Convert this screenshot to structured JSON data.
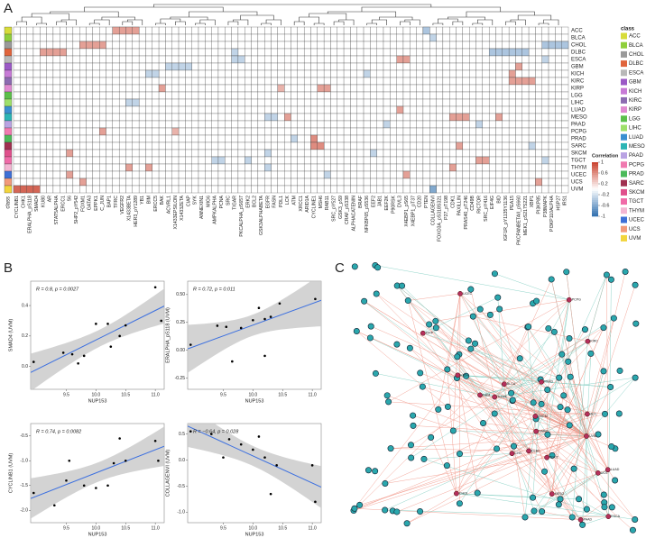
{
  "panels": {
    "a": "A",
    "b": "B",
    "c": "C"
  },
  "chart_data": [
    {
      "type": "heatmap",
      "row_axis_label": "class",
      "rows": [
        "ACC",
        "BLCA",
        "CHOL",
        "DLBC",
        "ESCA",
        "GBM",
        "KICH",
        "KIRC",
        "KIRP",
        "LGG",
        "LIHC",
        "LUAD",
        "MESO",
        "PAAD",
        "PCPG",
        "PRAD",
        "SARC",
        "SKCM",
        "TGCT",
        "THYM",
        "UCEC",
        "UCS",
        "UVM"
      ],
      "class_colors": [
        "#d7dc3a",
        "#8fcf3c",
        "#9a9a9a",
        "#e0643c",
        "#b8b8b8",
        "#9b59c6",
        "#c77ad6",
        "#8c6bb1",
        "#e08ad0",
        "#5cbf4a",
        "#9ee06a",
        "#3a8fd0",
        "#2cb5b5",
        "#b9a3e3",
        "#f07ab0",
        "#4cba5a",
        "#a03050",
        "#e0508c",
        "#f06aa8",
        "#f3b6d3",
        "#3d6fd6",
        "#f29a7a",
        "#f2d53c"
      ],
      "columns": [
        "CYCLINB1",
        "CHK1",
        "ERALPHA_pS118",
        "SMAD4",
        "KU80",
        "AR",
        "STAT5ALPHA",
        "ERCC1",
        "S6",
        "SHP2_pY542",
        "FOXM1",
        "GATA3",
        "EPPK1",
        "C_JUN",
        "BAP1",
        "TFRC",
        "VEGFR2",
        "X1433BETA",
        "HER3_pY1289",
        "YB1",
        "BIM",
        "ERCC5",
        "BAK",
        "ACVRL1",
        "X1433EPSILON",
        "X1433ZETA",
        "CIAP",
        "SYK",
        "ANNEXIN1",
        "MIG6",
        "AMPKALPHA",
        "PCNA",
        "SRC",
        "TIGAR",
        "PKCALPHA_pS657",
        "ERK2",
        "BCL2",
        "GSK3ALPHABETA",
        "EGFR",
        "FASN",
        "PDL1",
        "LCK",
        "ATM",
        "XRCC1",
        "ARID1A",
        "CYCLINE1",
        "MSH6",
        "RAB11",
        "SRC_pY527",
        "GSK3_pS9",
        "CRAF_pS338",
        "ALPHACATENIN",
        "BRAF",
        "NFKBP65_pS536",
        "EEF2",
        "JAB1",
        "EEF2K",
        "P90RSK",
        "DVL3",
        "X4EBP1_pS65",
        "X4EBP1_pT37",
        "CD20",
        "PTEN",
        "COLLAGENVI",
        "FOXO3A_pS318S321",
        "P27_pT198",
        "CDK1",
        "PAXILLIN",
        "PRAS40_pT246",
        "CD49B",
        "RICTOR",
        "SRC_pY416",
        "EIF4G",
        "BID",
        "IGF1R_pY1135Y1136",
        "PEA15",
        "PKCPANBETAII_pS660",
        "MEK1_pS217S221",
        "XBP1",
        "PI3KP85",
        "P38MAPK",
        "PI3KP110ALPHA",
        "HSP27",
        "IRS1"
      ],
      "cells": [
        [
          {
            "col": 15,
            "value": 0.5
          },
          {
            "col": 16,
            "value": 0.5
          },
          {
            "col": 17,
            "value": 0.5
          },
          {
            "col": 18,
            "value": 0.5
          },
          {
            "col": 62,
            "value": -0.4
          }
        ],
        [
          {
            "col": 63,
            "value": -0.3
          }
        ],
        [
          {
            "col": 10,
            "value": 0.5
          },
          {
            "col": 11,
            "value": 0.5
          },
          {
            "col": 12,
            "value": 0.5
          },
          {
            "col": 13,
            "value": 0.5
          },
          {
            "col": 80,
            "value": -0.4
          },
          {
            "col": 81,
            "value": -0.4
          },
          {
            "col": 82,
            "value": -0.4
          },
          {
            "col": 83,
            "value": -0.4
          }
        ],
        [
          {
            "col": 4,
            "value": 0.5
          },
          {
            "col": 5,
            "value": 0.5
          },
          {
            "col": 6,
            "value": 0.5
          },
          {
            "col": 7,
            "value": 0.5
          },
          {
            "col": 33,
            "value": -0.3
          },
          {
            "col": 72,
            "value": -0.4
          },
          {
            "col": 73,
            "value": -0.4
          },
          {
            "col": 74,
            "value": -0.4
          },
          {
            "col": 75,
            "value": -0.4
          },
          {
            "col": 76,
            "value": -0.4
          },
          {
            "col": 77,
            "value": -0.4
          }
        ],
        [
          {
            "col": 33,
            "value": -0.3
          },
          {
            "col": 34,
            "value": -0.3
          },
          {
            "col": 58,
            "value": 0.5
          },
          {
            "col": 59,
            "value": 0.5
          },
          {
            "col": 80,
            "value": -0.3
          }
        ],
        [
          {
            "col": 23,
            "value": -0.3
          },
          {
            "col": 24,
            "value": -0.3
          },
          {
            "col": 25,
            "value": -0.3
          },
          {
            "col": 26,
            "value": -0.3
          },
          {
            "col": 76,
            "value": 0.5
          }
        ],
        [
          {
            "col": 20,
            "value": -0.3
          },
          {
            "col": 21,
            "value": -0.3
          },
          {
            "col": 53,
            "value": -0.3
          },
          {
            "col": 75,
            "value": 0.5
          }
        ],
        [
          {
            "col": 75,
            "value": 0.5
          },
          {
            "col": 76,
            "value": 0.5
          },
          {
            "col": 77,
            "value": 0.5
          },
          {
            "col": 78,
            "value": 0.5
          }
        ],
        [
          {
            "col": 22,
            "value": 0.5
          },
          {
            "col": 40,
            "value": 0.4
          },
          {
            "col": 46,
            "value": 0.5
          },
          {
            "col": 47,
            "value": 0.5
          }
        ],
        [],
        [
          {
            "col": 17,
            "value": -0.3
          },
          {
            "col": 18,
            "value": -0.3
          }
        ],
        [
          {
            "col": 58,
            "value": 0.5
          }
        ],
        [
          {
            "col": 38,
            "value": -0.3
          },
          {
            "col": 39,
            "value": -0.3
          },
          {
            "col": 41,
            "value": 0.5
          },
          {
            "col": 66,
            "value": 0.5
          },
          {
            "col": 67,
            "value": 0.5
          },
          {
            "col": 68,
            "value": 0.5
          },
          {
            "col": 73,
            "value": 0.5
          }
        ],
        [
          {
            "col": 56,
            "value": -0.3
          },
          {
            "col": 70,
            "value": -0.3
          }
        ],
        [
          {
            "col": 13,
            "value": 0.5
          },
          {
            "col": 24,
            "value": 0.4
          }
        ],
        [
          {
            "col": 42,
            "value": -0.3
          },
          {
            "col": 45,
            "value": 0.6
          }
        ],
        [
          {
            "col": 45,
            "value": 0.6
          },
          {
            "col": 46,
            "value": 0.6
          },
          {
            "col": 67,
            "value": 0.5
          },
          {
            "col": 78,
            "value": -0.3
          }
        ],
        [
          {
            "col": 8,
            "value": 0.5
          },
          {
            "col": 38,
            "value": -0.3
          },
          {
            "col": 54,
            "value": -0.3
          }
        ],
        [
          {
            "col": 30,
            "value": -0.3
          },
          {
            "col": 31,
            "value": -0.3
          },
          {
            "col": 35,
            "value": -0.3
          },
          {
            "col": 70,
            "value": 0.5
          },
          {
            "col": 71,
            "value": 0.5
          },
          {
            "col": 80,
            "value": -0.3
          }
        ],
        [
          {
            "col": 17,
            "value": 0.5
          },
          {
            "col": 20,
            "value": 0.5
          },
          {
            "col": 38,
            "value": -0.3
          },
          {
            "col": 66,
            "value": 0.5
          }
        ],
        [
          {
            "col": 8,
            "value": 0.5
          },
          {
            "col": 47,
            "value": -0.3
          },
          {
            "col": 59,
            "value": 0.5
          }
        ],
        [
          {
            "col": 10,
            "value": 0.5
          },
          {
            "col": 79,
            "value": 0.5
          }
        ],
        [
          {
            "col": 0,
            "value": 0.8
          },
          {
            "col": 1,
            "value": 0.8
          },
          {
            "col": 2,
            "value": 0.8
          },
          {
            "col": 3,
            "value": 0.8
          },
          {
            "col": 63,
            "value": -0.6
          }
        ]
      ],
      "legend_class_title": "class",
      "legend_title": "Correlation",
      "legend_ticks": [
        1,
        0.6,
        0.2,
        -0.2,
        -0.6,
        -1
      ],
      "clim": [
        -1,
        1
      ],
      "pos_color": "#c9402c",
      "neg_color": "#2f6fae"
    },
    {
      "type": "scatter",
      "annotation": "R = 0.8, p = 0.0027",
      "xlabel": "NUP153",
      "ylabel": "SMAD4 (UVM)",
      "x": [
        8.95,
        9.45,
        9.6,
        9.7,
        9.8,
        10.0,
        10.2,
        10.25,
        10.4,
        10.5,
        11.0,
        11.1
      ],
      "values": [
        0.03,
        0.09,
        0.08,
        0.02,
        0.07,
        0.28,
        0.28,
        0.13,
        0.2,
        0.27,
        0.52,
        0.3
      ],
      "xlim": [
        8.9,
        11.15
      ],
      "ylim": [
        -0.15,
        0.56
      ],
      "xticks": [
        9.5,
        {
          "value": 10,
          "label": "10.0"
        },
        10.5,
        {
          "value": 11,
          "label": "11.0"
        }
      ],
      "yticks": [
        0.4,
        0.2,
        {
          "value": 0,
          "label": "0.0"
        }
      ],
      "color": "#000000",
      "fit_color": "#3b6fe0",
      "band_color": "#c8c8c8"
    },
    {
      "type": "scatter",
      "annotation": "R = 0.72, p = 0.011",
      "xlabel": "NUP153",
      "ylabel": "ERALPHA_pS118 (UVM)",
      "x": [
        8.95,
        9.4,
        9.55,
        9.65,
        9.8,
        10.0,
        10.1,
        10.2,
        10.2,
        10.3,
        10.45,
        11.05
      ],
      "values": [
        0.05,
        0.22,
        0.21,
        -0.1,
        0.2,
        0.27,
        0.38,
        -0.05,
        0.28,
        0.3,
        0.42,
        0.46
      ],
      "xlim": [
        8.9,
        11.15
      ],
      "ylim": [
        -0.35,
        0.62
      ],
      "xticks": [
        9.5,
        {
          "value": 10,
          "label": "10.0"
        },
        10.5,
        {
          "value": 11,
          "label": "11.0"
        }
      ],
      "yticks": [
        {
          "value": 0.5,
          "label": "0.50"
        },
        0.25,
        {
          "value": 0,
          "label": "0.00"
        },
        -0.25
      ],
      "color": "#000000",
      "fit_color": "#3b6fe0",
      "band_color": "#c8c8c8"
    },
    {
      "type": "scatter",
      "annotation": "R = 0.74, p = 0.0082",
      "xlabel": "NUP153",
      "ylabel": "CYCLINB1 (UVM)",
      "x": [
        8.95,
        9.3,
        9.5,
        9.55,
        9.8,
        10.0,
        10.2,
        10.3,
        10.4,
        10.5,
        11.0,
        11.05
      ],
      "values": [
        -1.65,
        -1.9,
        -1.4,
        -1.0,
        -1.5,
        -1.55,
        -1.5,
        -1.05,
        -0.55,
        -1.0,
        -0.6,
        -1.0
      ],
      "xlim": [
        8.9,
        11.15
      ],
      "ylim": [
        -2.25,
        -0.25
      ],
      "xticks": [
        9.5,
        {
          "value": 10,
          "label": "10.0"
        },
        10.5,
        {
          "value": 11,
          "label": "11.0"
        }
      ],
      "yticks": [
        -0.5,
        {
          "value": -1,
          "label": "-1.0"
        },
        -1.5,
        {
          "value": -2,
          "label": "-2.0"
        }
      ],
      "color": "#000000",
      "fit_color": "#3b6fe0",
      "band_color": "#c8c8c8"
    },
    {
      "type": "scatter",
      "annotation": "R = −0.64, p = 0.028",
      "xlabel": "NUP153",
      "ylabel": "COLLAGENVI (UVM)",
      "x": [
        8.95,
        9.3,
        9.5,
        9.6,
        9.8,
        10.0,
        10.1,
        10.2,
        10.3,
        10.4,
        11.0,
        11.05
      ],
      "values": [
        0.55,
        0.5,
        0.05,
        0.4,
        0.3,
        0.2,
        0.45,
        0.05,
        -0.65,
        -0.1,
        -0.1,
        -0.8
      ],
      "xlim": [
        8.9,
        11.15
      ],
      "ylim": [
        -1.2,
        0.7
      ],
      "xticks": [
        9.5,
        {
          "value": 10,
          "label": "10.0"
        },
        10.5,
        {
          "value": 11,
          "label": "11.0"
        }
      ],
      "yticks": [
        0.5,
        {
          "value": 0,
          "label": "0.0"
        },
        -0.5,
        {
          "value": -1,
          "label": "-1.0"
        }
      ],
      "color": "#000000",
      "fit_color": "#3b6fe0",
      "band_color": "#c8c8c8"
    },
    {
      "type": "network",
      "hubs": [
        "UVM",
        "SKCM",
        "KICH",
        "THYM",
        "LIHC",
        "SARC",
        "MESO",
        "PAAD",
        "GBM",
        "ESCA",
        "UCEC",
        "CHOL",
        "TGCT",
        "LUAD",
        "KIRP",
        "PCPG",
        "UCS",
        "DLBC",
        "BLCA",
        "ACC",
        "KIRC",
        "PRAD"
      ],
      "hub_color": "#b5305c",
      "node_color": "#2aa7ad",
      "edge_colors": [
        "#f09080",
        "#74c9bb"
      ]
    }
  ]
}
